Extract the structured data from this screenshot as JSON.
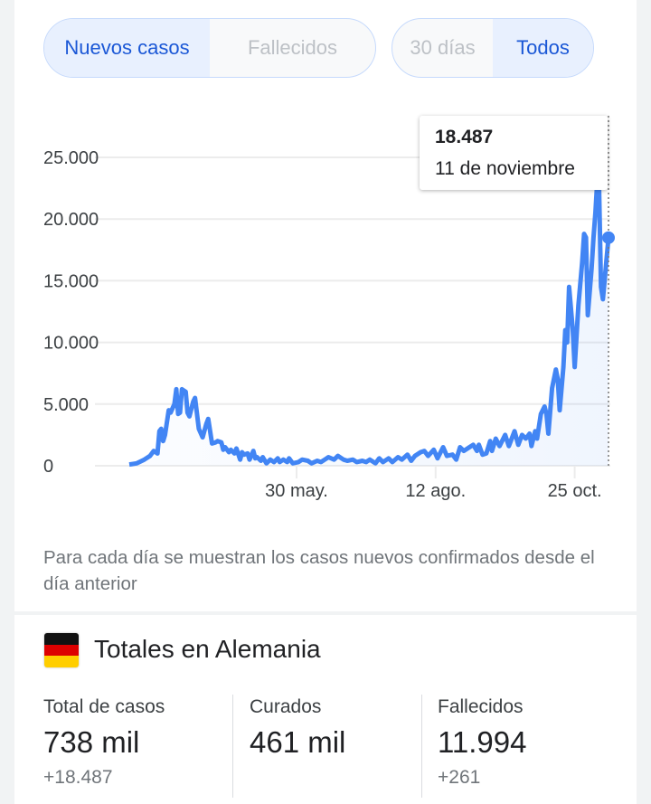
{
  "toggles": {
    "metric": [
      {
        "label": "Nuevos casos",
        "selected": true
      },
      {
        "label": "Fallecidos",
        "selected": false
      }
    ],
    "range": [
      {
        "label": "30 días",
        "selected": false
      },
      {
        "label": "Todos",
        "selected": true
      }
    ]
  },
  "tooltip": {
    "value": "18.487",
    "date": "11 de noviembre"
  },
  "note": "Para cada día se muestran los casos nuevos confirmados desde el día anterior",
  "totals": {
    "title": "Totales en Alemania",
    "stats": [
      {
        "label": "Total de casos",
        "value": "738 mil",
        "delta": "+18.487"
      },
      {
        "label": "Curados",
        "value": "461 mil",
        "delta": ""
      },
      {
        "label": "Fallecidos",
        "value": "11.994",
        "delta": "+261"
      }
    ]
  },
  "colors": {
    "line": "#4285f4",
    "accent": "#1a57d6"
  },
  "chart_data": {
    "type": "line",
    "title": "Nuevos casos",
    "x_unit": "days since start (approx. 1 mar.)",
    "ylim": [
      0,
      25000
    ],
    "xlim": [
      0,
      255
    ],
    "yticks": [
      {
        "v": 0,
        "label": "0"
      },
      {
        "v": 5000,
        "label": "5.000"
      },
      {
        "v": 10000,
        "label": "10.000"
      },
      {
        "v": 15000,
        "label": "15.000"
      },
      {
        "v": 20000,
        "label": "20.000"
      },
      {
        "v": 25000,
        "label": "25.000"
      }
    ],
    "xticks": [
      {
        "v": 89,
        "label": "30 may."
      },
      {
        "v": 163,
        "label": "12 ago."
      },
      {
        "v": 237,
        "label": "25 oct."
      }
    ],
    "grid": true,
    "highlight": {
      "x": 255,
      "y": 18487
    },
    "points": [
      [
        0,
        100
      ],
      [
        4,
        200
      ],
      [
        8,
        500
      ],
      [
        11,
        800
      ],
      [
        13,
        1200
      ],
      [
        15,
        1000
      ],
      [
        16,
        2800
      ],
      [
        17,
        3000
      ],
      [
        18,
        2000
      ],
      [
        19,
        2500
      ],
      [
        21,
        4500
      ],
      [
        22,
        4300
      ],
      [
        24,
        5000
      ],
      [
        25,
        6200
      ],
      [
        26,
        4200
      ],
      [
        27,
        4300
      ],
      [
        28,
        6200
      ],
      [
        30,
        6000
      ],
      [
        31,
        4300
      ],
      [
        32,
        4000
      ],
      [
        34,
        5200
      ],
      [
        35,
        5500
      ],
      [
        37,
        3000
      ],
      [
        39,
        2300
      ],
      [
        41,
        3400
      ],
      [
        42,
        3800
      ],
      [
        44,
        1800
      ],
      [
        46,
        1900
      ],
      [
        47,
        2000
      ],
      [
        49,
        1900
      ],
      [
        50,
        1300
      ],
      [
        51,
        1500
      ],
      [
        53,
        1100
      ],
      [
        54,
        1300
      ],
      [
        56,
        1000
      ],
      [
        57,
        1400
      ],
      [
        59,
        500
      ],
      [
        60,
        1100
      ],
      [
        61,
        900
      ],
      [
        63,
        1000
      ],
      [
        64,
        500
      ],
      [
        66,
        1200
      ],
      [
        67,
        600
      ],
      [
        68,
        700
      ],
      [
        70,
        400
      ],
      [
        71,
        700
      ],
      [
        73,
        200
      ],
      [
        75,
        500
      ],
      [
        77,
        300
      ],
      [
        79,
        600
      ],
      [
        80,
        300
      ],
      [
        82,
        500
      ],
      [
        84,
        300
      ],
      [
        85,
        600
      ],
      [
        87,
        200
      ],
      [
        90,
        300
      ],
      [
        92,
        500
      ],
      [
        95,
        400
      ],
      [
        97,
        200
      ],
      [
        100,
        400
      ],
      [
        102,
        300
      ],
      [
        104,
        500
      ],
      [
        106,
        700
      ],
      [
        109,
        500
      ],
      [
        111,
        800
      ],
      [
        114,
        500
      ],
      [
        116,
        400
      ],
      [
        119,
        500
      ],
      [
        121,
        300
      ],
      [
        124,
        400
      ],
      [
        126,
        300
      ],
      [
        128,
        500
      ],
      [
        131,
        200
      ],
      [
        133,
        600
      ],
      [
        135,
        300
      ],
      [
        138,
        600
      ],
      [
        140,
        300
      ],
      [
        143,
        700
      ],
      [
        145,
        500
      ],
      [
        148,
        900
      ],
      [
        150,
        400
      ],
      [
        152,
        800
      ],
      [
        155,
        1100
      ],
      [
        157,
        1200
      ],
      [
        159,
        800
      ],
      [
        162,
        1300
      ],
      [
        164,
        600
      ],
      [
        167,
        1500
      ],
      [
        169,
        800
      ],
      [
        172,
        900
      ],
      [
        174,
        500
      ],
      [
        176,
        1500
      ],
      [
        178,
        1200
      ],
      [
        181,
        1500
      ],
      [
        183,
        1700
      ],
      [
        185,
        1200
      ],
      [
        186,
        1700
      ],
      [
        188,
        900
      ],
      [
        190,
        1000
      ],
      [
        192,
        2000
      ],
      [
        193,
        1200
      ],
      [
        195,
        2200
      ],
      [
        197,
        1600
      ],
      [
        200,
        2500
      ],
      [
        202,
        1600
      ],
      [
        205,
        2800
      ],
      [
        207,
        1700
      ],
      [
        209,
        2500
      ],
      [
        211,
        2200
      ],
      [
        213,
        2600
      ],
      [
        214,
        1600
      ],
      [
        216,
        2800
      ],
      [
        217,
        2200
      ],
      [
        219,
        4200
      ],
      [
        221,
        4800
      ],
      [
        222,
        4200
      ],
      [
        223,
        2600
      ],
      [
        225,
        6300
      ],
      [
        227,
        7800
      ],
      [
        228,
        7000
      ],
      [
        229,
        4500
      ],
      [
        231,
        8000
      ],
      [
        232,
        11000
      ],
      [
        233,
        10000
      ],
      [
        234,
        14500
      ],
      [
        236,
        11000
      ],
      [
        237,
        8000
      ],
      [
        239,
        13000
      ],
      [
        241,
        16500
      ],
      [
        242,
        18800
      ],
      [
        243,
        18500
      ],
      [
        244,
        12200
      ],
      [
        246,
        16000
      ],
      [
        247,
        18500
      ],
      [
        248,
        20500
      ],
      [
        249,
        23000
      ],
      [
        250,
        22500
      ],
      [
        251,
        14500
      ],
      [
        252,
        13500
      ],
      [
        255,
        18487
      ]
    ]
  }
}
